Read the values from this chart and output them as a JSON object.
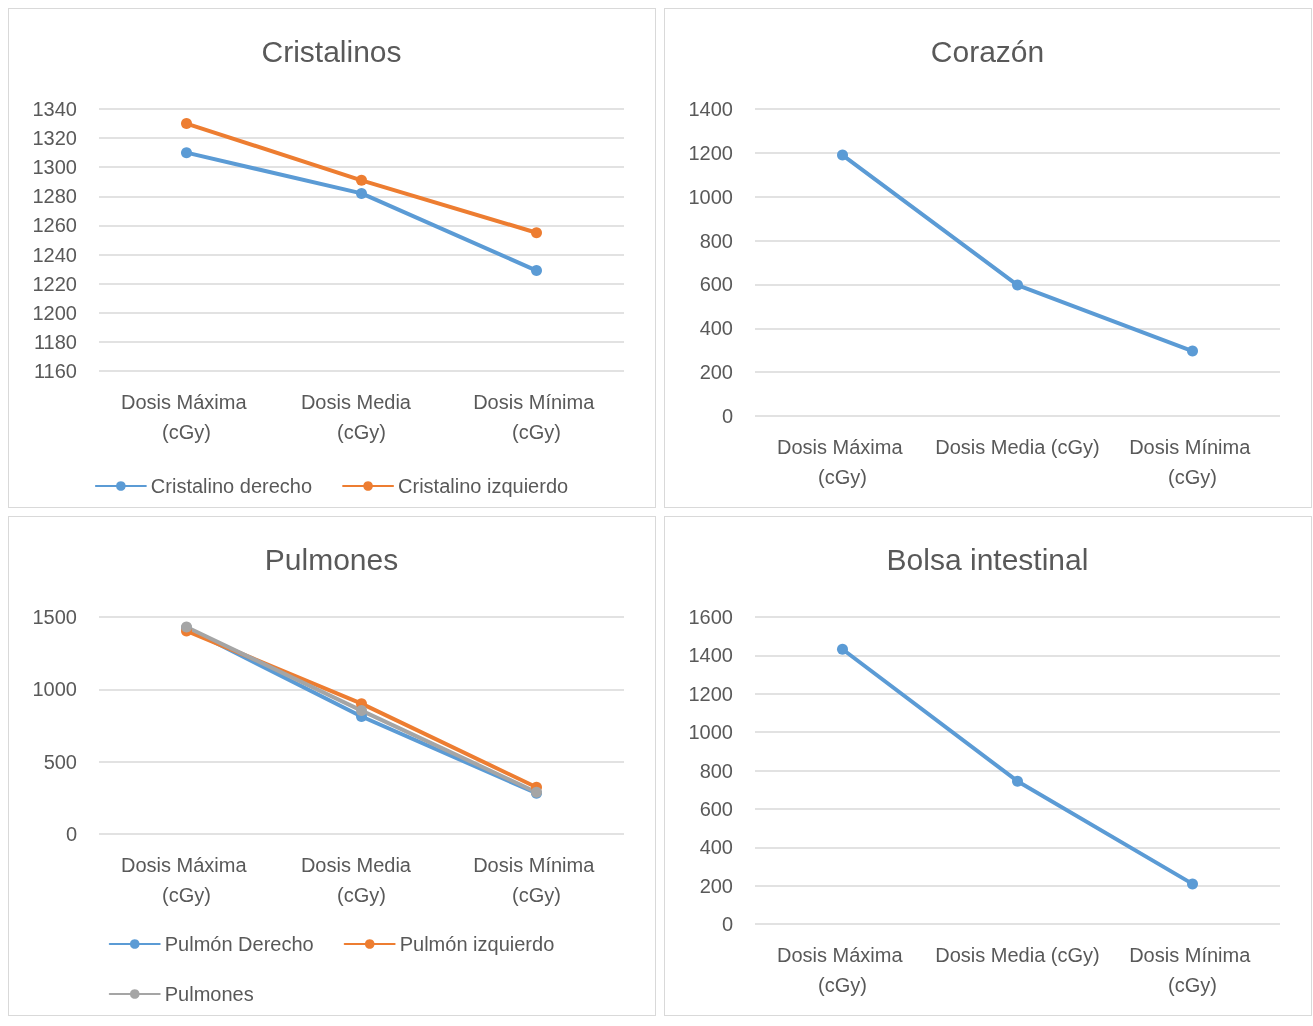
{
  "chart_data": [
    {
      "type": "line",
      "title": "Cristalinos",
      "categories": [
        "Dosis Máxima (cGy)",
        "Dosis Media  (cGy)",
        "Dosis Mínima (cGy)"
      ],
      "series": [
        {
          "name": "Cristalino derecho",
          "color": "#5b9bd5",
          "values": [
            1310,
            1282,
            1229
          ]
        },
        {
          "name": "Cristalino izquierdo",
          "color": "#ed7d31",
          "values": [
            1330,
            1291,
            1255
          ]
        }
      ],
      "ylim": [
        1160,
        1340
      ],
      "yticks": [
        1160,
        1180,
        1200,
        1220,
        1240,
        1260,
        1280,
        1300,
        1320,
        1340
      ],
      "grid": "y",
      "legend": "bottom",
      "marker": "circle",
      "line_style": "solid"
    },
    {
      "type": "line",
      "title": "Corazón",
      "categories": [
        "Dosis Máxima (cGy)",
        "Dosis Media (cGy)",
        "Dosis Mínima (cGy)"
      ],
      "series": [
        {
          "color": "#5b9bd5",
          "values": [
            1190,
            597,
            296
          ]
        }
      ],
      "ylim": [
        0,
        1400
      ],
      "yticks": [
        0,
        200,
        400,
        600,
        800,
        1000,
        1200,
        1400
      ],
      "grid": "y",
      "marker": "circle",
      "line_style": "solid"
    },
    {
      "type": "line",
      "title": "Pulmones",
      "categories": [
        "Dosis Máxima (cGy)",
        "Dosis Media  (cGy)",
        "Dosis Mínima (cGy)"
      ],
      "series": [
        {
          "name": "Pulmón Derecho",
          "color": "#5b9bd5",
          "values": [
            1424,
            812,
            282
          ]
        },
        {
          "name": "Pulmón izquierdo",
          "color": "#ed7d31",
          "values": [
            1404,
            901,
            323
          ]
        },
        {
          "name": "Pulmones",
          "color": "#a5a5a5",
          "values": [
            1431,
            853,
            289
          ]
        }
      ],
      "ylim": [
        0,
        1500
      ],
      "yticks": [
        0,
        500,
        1000,
        1500
      ],
      "grid": "y",
      "legend": "bottom",
      "marker": "circle",
      "line_style": "solid"
    },
    {
      "type": "line",
      "title": "Bolsa intestinal",
      "categories": [
        "Dosis Máxima (cGy)",
        "Dosis Media (cGy)",
        "Dosis Mínima (cGy)"
      ],
      "series": [
        {
          "color": "#5b9bd5",
          "values": [
            1432,
            744,
            209
          ]
        }
      ],
      "ylim": [
        0,
        1600
      ],
      "yticks": [
        0,
        200,
        400,
        600,
        800,
        1000,
        1200,
        1400,
        1600
      ],
      "grid": "y",
      "marker": "circle",
      "line_style": "solid"
    }
  ]
}
